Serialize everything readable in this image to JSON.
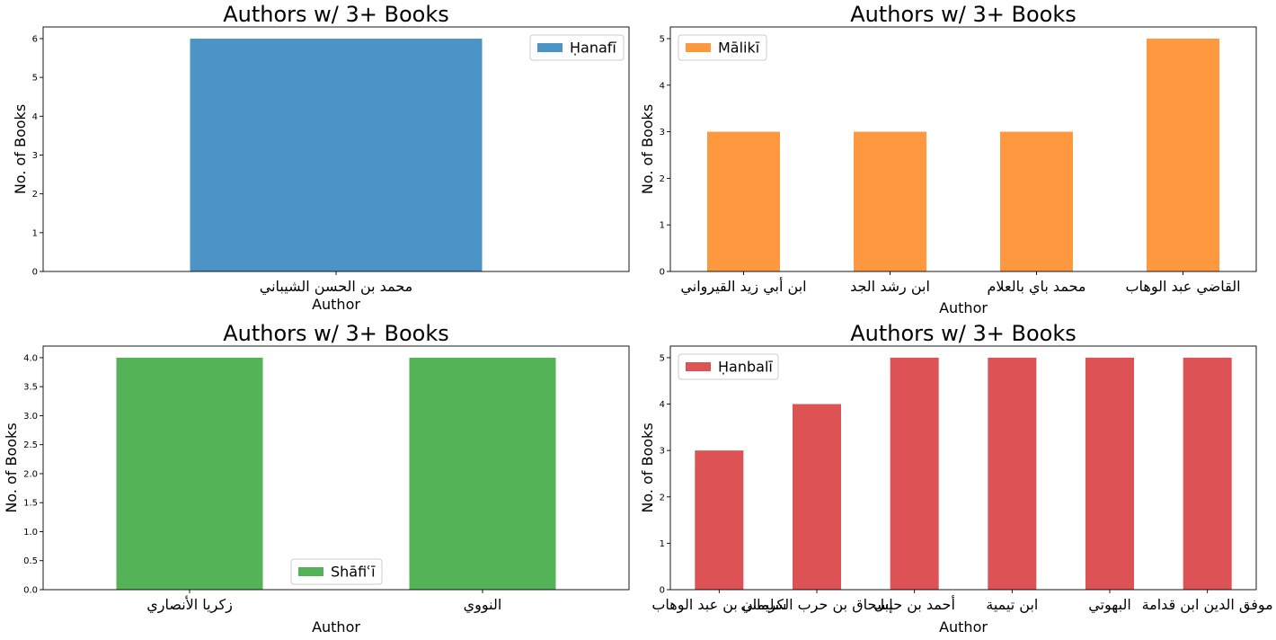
{
  "chart_data": [
    {
      "type": "bar",
      "title": "Authors w/ 3+ Books",
      "xlabel": "Author",
      "ylabel": "No. of Books",
      "categories": [
        "محمد بن الحسن الشيباني"
      ],
      "series": [
        {
          "name": "Ḥanafī",
          "values": [
            6
          ],
          "color": "#4c93c6"
        }
      ],
      "ylim": [
        0,
        6.3
      ],
      "yticks": [
        "0",
        "1",
        "2",
        "3",
        "4",
        "5",
        "6"
      ],
      "legend": "upper right",
      "grid": false
    },
    {
      "type": "bar",
      "title": "Authors w/ 3+ Books",
      "xlabel": "Author",
      "ylabel": "No. of Books",
      "categories": [
        "ابن أبي زيد القيرواني",
        "ابن رشد الجد",
        "محمد باي بالعلام",
        "القاضي عبد الوهاب"
      ],
      "series": [
        {
          "name": "Mālikī",
          "values": [
            3,
            3,
            3,
            5
          ],
          "color": "#ff983f"
        }
      ],
      "ylim": [
        0,
        5.25
      ],
      "yticks": [
        "0",
        "1",
        "2",
        "3",
        "4",
        "5"
      ],
      "legend": "upper left",
      "grid": false
    },
    {
      "type": "bar",
      "title": "Authors w/ 3+ Books",
      "xlabel": "Author",
      "ylabel": "No. of Books",
      "categories": [
        "زكريا الأنصاري",
        "النووي"
      ],
      "series": [
        {
          "name": "Shāfiʿī",
          "values": [
            4,
            4
          ],
          "color": "#55b357"
        }
      ],
      "ylim": [
        0,
        4.2
      ],
      "yticks": [
        "0.0",
        "0.5",
        "1.0",
        "1.5",
        "2.0",
        "2.5",
        "3.0",
        "3.5",
        "4.0"
      ],
      "legend": "lower center",
      "grid": false
    },
    {
      "type": "bar",
      "title": "Authors w/ 3+ Books",
      "xlabel": "Author",
      "ylabel": "No. of Books",
      "categories": [
        "سليمان بن عبد الوهاب",
        "إسحاق بن حرب الكرماني",
        "أحمد بن حنبل",
        "ابن تيمية",
        "البهوتي",
        "موفق الدين ابن قدامة"
      ],
      "series": [
        {
          "name": "Ḥanbalī",
          "values": [
            3,
            4,
            5,
            5,
            5,
            5
          ],
          "color": "#dd5355"
        }
      ],
      "ylim": [
        0,
        5.25
      ],
      "yticks": [
        "0",
        "1",
        "2",
        "3",
        "4",
        "5"
      ],
      "legend": "upper left",
      "grid": false
    }
  ]
}
